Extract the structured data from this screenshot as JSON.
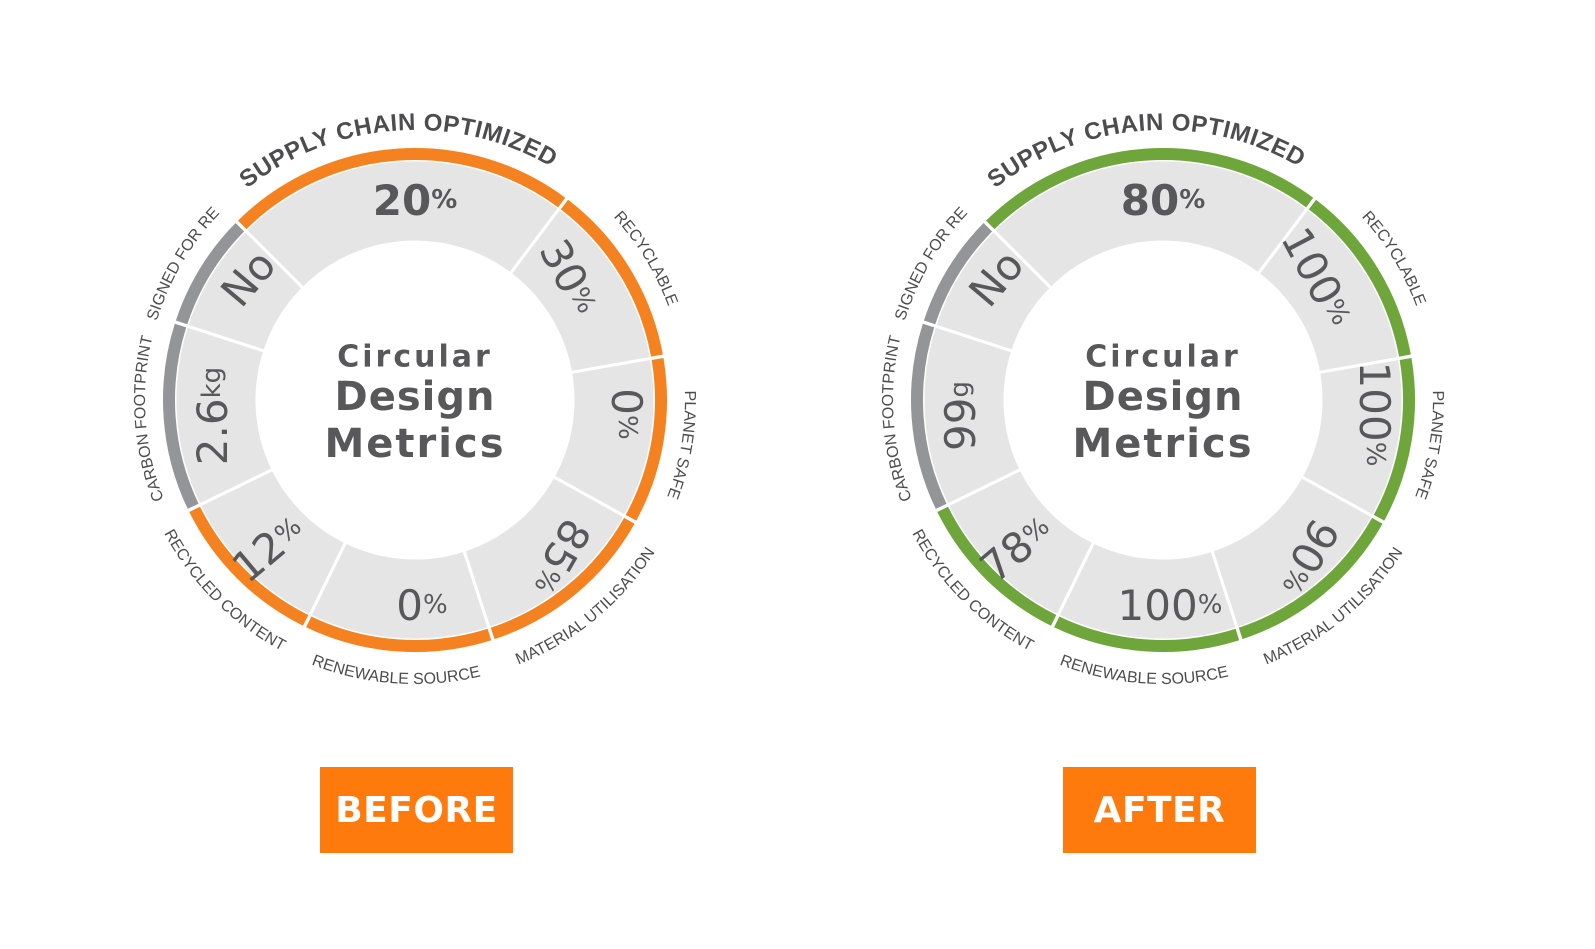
{
  "colors": {
    "before_accent": "#f58220",
    "after_accent": "#6fa63b",
    "neutral_ring": "#939598",
    "segment_fill": "#e5e5e6",
    "badge": "#ff7a0d",
    "text": "#58585a"
  },
  "center_title": {
    "line1": "Circular",
    "line2": "Design",
    "line3": "Metrics"
  },
  "labels": {
    "supply_chain": "SUPPLY CHAIN OPTIMIZED",
    "recyclable": "RECYCLABLE",
    "planet_safe": "PLANET SAFE",
    "material_utilisation": "MATERIAL UTILISATION",
    "renewable_source": "RENEWABLE SOURCE",
    "recycled_content": "RECYCLED CONTENT",
    "carbon_footprint": "CARBON FOOTPRINT",
    "designed_for_reuse": "DESIGNED FOR REUSE"
  },
  "before": {
    "badge": "BEFORE",
    "accent": "#f58220",
    "values": {
      "supply_chain": {
        "num": "20",
        "unit": "%",
        "achieved": true
      },
      "recyclable": {
        "num": "30",
        "unit": "%",
        "achieved": true
      },
      "planet_safe": {
        "num": "0",
        "unit": "%",
        "achieved": true
      },
      "material_utilisation": {
        "num": "85",
        "unit": "%",
        "achieved": true
      },
      "renewable_source": {
        "num": "0",
        "unit": "%",
        "achieved": true
      },
      "recycled_content": {
        "num": "12",
        "unit": "%",
        "achieved": true
      },
      "carbon_footprint": {
        "num": "2.6",
        "unit": "kg",
        "achieved": false
      },
      "designed_for_reuse": {
        "num": "No",
        "unit": "",
        "achieved": false
      }
    }
  },
  "after": {
    "badge": "AFTER",
    "accent": "#6fa63b",
    "values": {
      "supply_chain": {
        "num": "80",
        "unit": "%",
        "achieved": true
      },
      "recyclable": {
        "num": "100",
        "unit": "%",
        "achieved": true
      },
      "planet_safe": {
        "num": "100",
        "unit": "%",
        "achieved": true
      },
      "material_utilisation": {
        "num": "90",
        "unit": "%",
        "achieved": true
      },
      "renewable_source": {
        "num": "100",
        "unit": "%",
        "achieved": true
      },
      "recycled_content": {
        "num": "78",
        "unit": "%",
        "achieved": true
      },
      "carbon_footprint": {
        "num": "99",
        "unit": "g",
        "achieved": false
      },
      "designed_for_reuse": {
        "num": "No",
        "unit": "",
        "achieved": false
      }
    }
  }
}
